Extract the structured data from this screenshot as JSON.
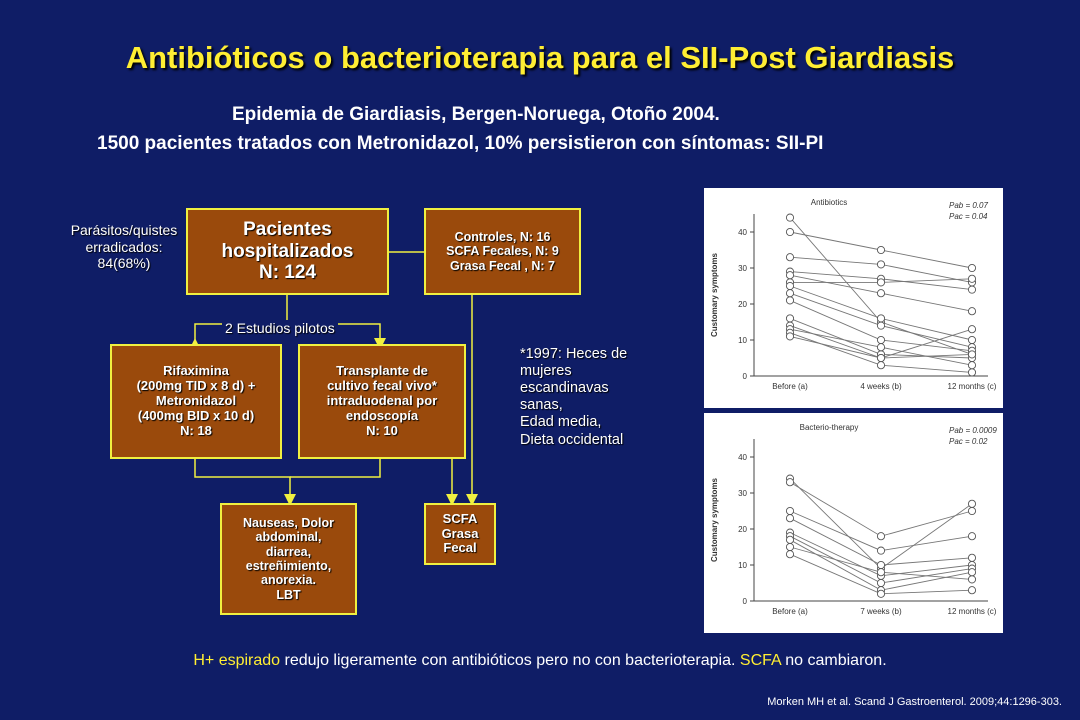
{
  "title": "Antibióticos o bacterioterapia para el SII-Post Giardiasis",
  "subtitle_line1": "Epidemia de Giardiasis, Bergen-Noruega, Otoño 2004.",
  "subtitle_line2": "1500 pacientes tratados con Metronidazol, 10% persistieron con síntomas: SII-PI",
  "flow": {
    "parasites_note": [
      "Parásitos/quistes",
      "erradicados:",
      "84(68%)"
    ],
    "patients_box": [
      "Pacientes",
      "hospitalizados",
      "N: 124"
    ],
    "controls_box": [
      "Controles, N: 16",
      "SCFA Fecales, N: 9",
      "Grasa Fecal , N: 7"
    ],
    "pilot_label": "2 Estudios pilotos",
    "rifaximina_box": [
      "Rifaximina",
      "(200mg TID x 8 d) +",
      "Metronidazol",
      "(400mg BID x 10 d)",
      "N: 18"
    ],
    "transplant_box": [
      "Transplante de",
      "cultivo fecal vivo*",
      "intraduodenal por",
      "endoscopía",
      "N: 10"
    ],
    "outcomes_box": [
      "Nauseas, Dolor",
      "abdominal,",
      "diarrea,",
      "estreñimiento,",
      "anorexia.",
      "LBT"
    ],
    "scfa_box": [
      "SCFA",
      "Grasa",
      "Fecal"
    ],
    "footnote": [
      "*1997: Heces de",
      "mujeres",
      "escandinavas",
      "sanas,",
      "Edad media,",
      "Dieta occidental"
    ]
  },
  "footer": {
    "hl1": "H+ espirado",
    "t1": " redujo ligeramente con antibióticos pero no con bacterioterapia. ",
    "hl2": "SCFA",
    "t2": " no cambiaron."
  },
  "citation": "Morken MH et al.  Scand J Gastroenterol. 2009;44:1296-303.",
  "colors": {
    "background": "#0f1d66",
    "title": "#ffee33",
    "box_fill": "#9a4a0c",
    "box_border": "#f0f040"
  },
  "chart_data": [
    {
      "type": "line",
      "title": "Antibiotics",
      "annotations": [
        "Pab = 0.07",
        "Pac = 0.04"
      ],
      "ylabel": "Customary symptoms",
      "xlabel": "",
      "categories": [
        "Before (a)",
        "4 weeks (b)",
        "12 months (c)"
      ],
      "ylim": [
        0,
        45
      ],
      "yticks": [
        0,
        10,
        20,
        30,
        40
      ],
      "series": [
        {
          "values": [
            44,
            15,
            6
          ]
        },
        {
          "values": [
            40,
            35,
            30
          ]
        },
        {
          "values": [
            33,
            31,
            26
          ]
        },
        {
          "values": [
            29,
            27,
            24
          ]
        },
        {
          "values": [
            28,
            23,
            18
          ]
        },
        {
          "values": [
            26,
            26,
            27
          ]
        },
        {
          "values": [
            25,
            16,
            10
          ]
        },
        {
          "values": [
            23,
            14,
            8
          ]
        },
        {
          "values": [
            21,
            10,
            7
          ]
        },
        {
          "values": [
            16,
            6,
            5
          ]
        },
        {
          "values": [
            14,
            5,
            13
          ]
        },
        {
          "values": [
            13,
            8,
            3
          ]
        },
        {
          "values": [
            12,
            3,
            1
          ]
        },
        {
          "values": [
            11,
            5,
            6
          ]
        }
      ]
    },
    {
      "type": "line",
      "title": "Bacterio-therapy",
      "annotations": [
        "Pab = 0.0009",
        "Pac = 0.02"
      ],
      "ylabel": "Customary symptoms",
      "xlabel": "",
      "categories": [
        "Before (a)",
        "7 weeks (b)",
        "12 months (c)"
      ],
      "ylim": [
        0,
        45
      ],
      "yticks": [
        0,
        10,
        20,
        30,
        40
      ],
      "series": [
        {
          "values": [
            34,
            9,
            27
          ]
        },
        {
          "values": [
            33,
            18,
            25
          ]
        },
        {
          "values": [
            25,
            14,
            18
          ]
        },
        {
          "values": [
            23,
            10,
            12
          ]
        },
        {
          "values": [
            19,
            7,
            10
          ]
        },
        {
          "values": [
            18,
            5,
            9
          ]
        },
        {
          "values": [
            17,
            3,
            8
          ]
        },
        {
          "values": [
            15,
            8,
            6
          ]
        },
        {
          "values": [
            13,
            2,
            3
          ]
        }
      ]
    }
  ]
}
